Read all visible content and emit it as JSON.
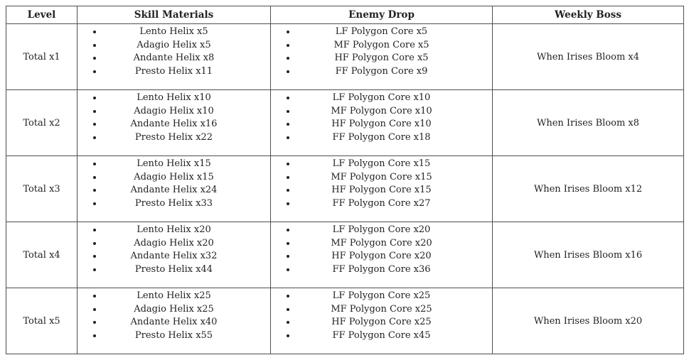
{
  "colors": {
    "border": "#4f4f4f",
    "text": "#222222",
    "background": "#ffffff"
  },
  "table": {
    "headers": [
      "Level",
      "Skill Materials",
      "Enemy Drop",
      "Weekly Boss"
    ],
    "rows": [
      {
        "level": "Total x1",
        "skill_materials": [
          "Lento Helix x5",
          "Adagio Helix x5",
          "Andante Helix x8",
          "Presto Helix x11"
        ],
        "enemy_drop": [
          "LF Polygon Core x5",
          "MF Polygon Core x5",
          "HF Polygon Core x5",
          "FF Polygon Core x9"
        ],
        "weekly_boss": "When Irises Bloom x4"
      },
      {
        "level": "Total x2",
        "skill_materials": [
          "Lento Helix x10",
          "Adagio Helix x10",
          "Andante Helix x16",
          "Presto Helix x22"
        ],
        "enemy_drop": [
          "LF Polygon Core x10",
          "MF Polygon Core x10",
          "HF Polygon Core x10",
          "FF Polygon Core x18"
        ],
        "weekly_boss": "When Irises Bloom x8"
      },
      {
        "level": "Total x3",
        "skill_materials": [
          "Lento Helix x15",
          "Adagio Helix x15",
          "Andante Helix x24",
          "Presto Helix x33"
        ],
        "enemy_drop": [
          "LF Polygon Core x15",
          "MF Polygon Core x15",
          "HF Polygon Core x15",
          "FF Polygon Core x27"
        ],
        "weekly_boss": "When Irises Bloom x12"
      },
      {
        "level": "Total x4",
        "skill_materials": [
          "Lento Helix x20",
          "Adagio Helix x20",
          "Andante Helix x32",
          "Presto Helix x44"
        ],
        "enemy_drop": [
          "LF Polygon Core x20",
          "MF Polygon Core x20",
          "HF Polygon Core x20",
          "FF Polygon Core x36"
        ],
        "weekly_boss": "When Irises Bloom x16"
      },
      {
        "level": "Total x5",
        "skill_materials": [
          "Lento Helix x25",
          "Adagio Helix x25",
          "Andante Helix x40",
          "Presto Helix x55"
        ],
        "enemy_drop": [
          "LF Polygon Core x25",
          "MF Polygon Core x25",
          "HF Polygon Core x25",
          "FF Polygon Core x45"
        ],
        "weekly_boss": "When Irises Bloom x20"
      }
    ]
  }
}
